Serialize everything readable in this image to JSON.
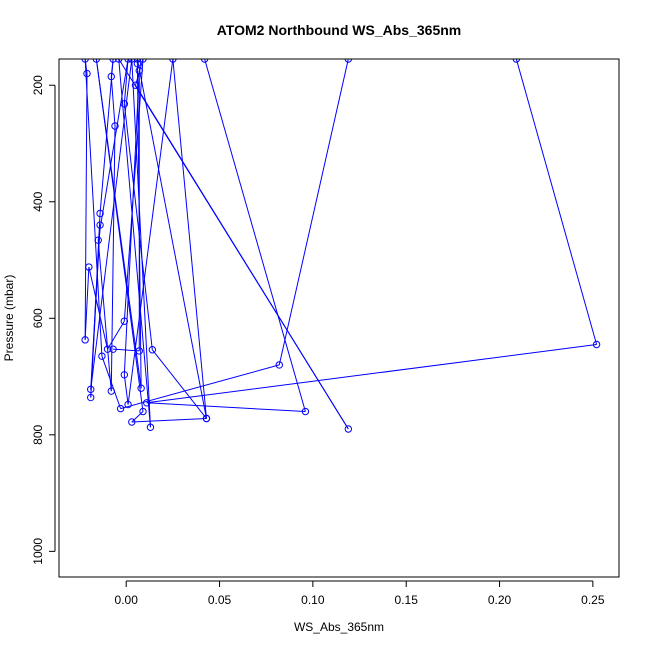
{
  "chart_data": {
    "type": "line",
    "title": "ATOM2 Northbound WS_Abs_365nm",
    "xlabel": "WS_Abs_365nm",
    "ylabel": "Pressure (mbar)",
    "xlim": [
      -0.036,
      0.264
    ],
    "ylim": [
      1044,
      155
    ],
    "y_axis": "reversed",
    "grid": false,
    "legend": "none",
    "marker": "open-circle",
    "color": "#0000ff",
    "x_ticks": [
      0.0,
      0.05,
      0.1,
      0.15,
      0.2,
      0.25
    ],
    "x_tick_labels": [
      "0.00",
      "0.05",
      "0.10",
      "0.15",
      "0.20",
      "0.25"
    ],
    "y_ticks": [
      200,
      400,
      600,
      800,
      1000
    ],
    "y_tick_labels": [
      "200",
      "400",
      "600",
      "800",
      "1000"
    ],
    "series": [
      {
        "points": [
          [
            0.042,
            155
          ],
          [
            0.096,
            760
          ],
          [
            0.011,
            745
          ],
          [
            0.252,
            645
          ],
          [
            0.209,
            155
          ],
          [
            0.119,
            155
          ],
          [
            0.082,
            680
          ],
          [
            -0.003,
            755
          ],
          [
            -0.013,
            665
          ],
          [
            -0.022,
            155
          ],
          [
            -0.021,
            180
          ],
          [
            -0.022,
            637
          ],
          [
            -0.02,
            512
          ],
          [
            -0.01,
            653
          ],
          [
            -0.001,
            605
          ],
          [
            0.009,
            155
          ],
          [
            0.005,
            200
          ],
          [
            0.119,
            790
          ],
          [
            -0.004,
            155
          ],
          [
            0.013,
            787
          ],
          [
            0.003,
            155
          ],
          [
            -0.019,
            722
          ],
          [
            -0.014,
            440
          ],
          [
            -0.019,
            736
          ],
          [
            -0.014,
            420
          ],
          [
            -0.007,
            155
          ],
          [
            -0.008,
            185
          ],
          [
            -0.006,
            270
          ],
          [
            -0.008,
            725
          ],
          [
            -0.015,
            466
          ],
          [
            0.001,
            155
          ],
          [
            -0.001,
            232
          ],
          [
            0.014,
            654
          ],
          [
            0.043,
            772
          ],
          [
            0.006,
            155
          ],
          [
            0.006,
            163
          ],
          [
            0.008,
            720
          ],
          [
            -0.016,
            155
          ],
          [
            0.009,
            760
          ],
          [
            0.003,
            778
          ],
          [
            0.043,
            772
          ],
          [
            0.025,
            155
          ],
          [
            0.001,
            748
          ],
          [
            -0.001,
            697
          ],
          [
            0.007,
            175
          ],
          [
            0.007,
            656
          ],
          [
            -0.007,
            653
          ]
        ]
      }
    ]
  }
}
